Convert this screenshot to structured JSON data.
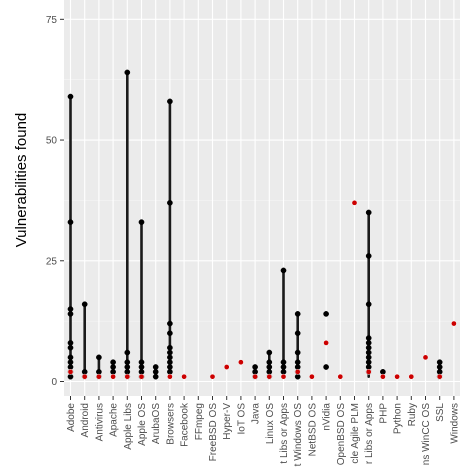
{
  "chart_data": {
    "type": "scatter",
    "title": "",
    "xlabel": "",
    "ylabel": "Vulnerabilities found",
    "ylim": [
      -3,
      79
    ],
    "yticks": [
      0,
      25,
      50,
      75
    ],
    "grid": true,
    "legend": "none",
    "categories": [
      "Adobe",
      "Android",
      "Antivirus",
      "Apache",
      "Apple Libs",
      "Apple OS",
      "ArubaOS",
      "Browsers",
      "Facebook",
      "FFmpeg",
      "FreeBSD OS",
      "Hyper-V",
      "IoT OS",
      "Java",
      "Linux OS",
      "Microsoft Libs or Apps",
      "Microsoft Windows OS",
      "NetBSD OS",
      "nVidia",
      "OpenBSD OS",
      "Oracle Agile PLM",
      "Other Libs or Apps",
      "PHP",
      "Python",
      "Ruby",
      "Siemens WinCC OS",
      "SSL",
      "Windows"
    ],
    "tick_labels": [
      "Adobe",
      "Android",
      "Antivirus",
      "Apache",
      "Apple Libs",
      "Apple OS",
      "ArubaOS",
      "Browsers",
      "Facebook",
      "FFmpeg",
      "FreeBSD OS",
      "Hyper-V",
      "IoT OS",
      "Java",
      "Linux OS",
      "t Libs or Apps",
      "t Windows OS",
      "NetBSD OS",
      "nVidia",
      "OpenBSD OS",
      "cle Agile PLM",
      "r Libs or Apps",
      "PHP",
      "Python",
      "Ruby",
      "ns WinCC OS",
      "SSL",
      "Windows"
    ],
    "ranges": [
      {
        "category": "Adobe",
        "min": 1,
        "max": 59
      },
      {
        "category": "Android",
        "min": 1,
        "max": 16
      },
      {
        "category": "Antivirus",
        "min": 1,
        "max": 5
      },
      {
        "category": "Apache",
        "min": 1,
        "max": 4
      },
      {
        "category": "Apple Libs",
        "min": 1,
        "max": 64
      },
      {
        "category": "Apple OS",
        "min": 1,
        "max": 33
      },
      {
        "category": "ArubaOS",
        "min": 1,
        "max": 3
      },
      {
        "category": "Browsers",
        "min": 1,
        "max": 58
      },
      {
        "category": "Java",
        "min": 1,
        "max": 3
      },
      {
        "category": "Linux OS",
        "min": 1,
        "max": 6
      },
      {
        "category": "Microsoft Libs or Apps",
        "min": 1,
        "max": 23
      },
      {
        "category": "Microsoft Windows OS",
        "min": 1,
        "max": 14
      },
      {
        "category": "Other Libs or Apps",
        "min": 1,
        "max": 35
      },
      {
        "category": "SSL",
        "min": 1,
        "max": 4
      }
    ],
    "series": [
      {
        "name": "",
        "color": "#000000",
        "points": [
          {
            "category": "Adobe",
            "values": [
              59,
              33,
              15,
              14,
              8,
              7,
              5,
              4,
              3,
              2,
              1
            ]
          },
          {
            "category": "Android",
            "values": [
              16,
              2,
              1
            ]
          },
          {
            "category": "Antivirus",
            "values": [
              5,
              2,
              1
            ]
          },
          {
            "category": "Apache",
            "values": [
              4,
              3,
              2
            ]
          },
          {
            "category": "Apple Libs",
            "values": [
              64,
              6,
              4,
              3,
              2,
              1
            ]
          },
          {
            "category": "Apple OS",
            "values": [
              33,
              4,
              3,
              2,
              1
            ]
          },
          {
            "category": "ArubaOS",
            "values": [
              3,
              2,
              1
            ]
          },
          {
            "category": "Browsers",
            "values": [
              58,
              37,
              12,
              10,
              7,
              6,
              5,
              4,
              3,
              2
            ]
          },
          {
            "category": "Java",
            "values": [
              3,
              2,
              1
            ]
          },
          {
            "category": "Linux OS",
            "values": [
              6,
              4,
              3,
              2,
              1
            ]
          },
          {
            "category": "Microsoft Libs or Apps",
            "values": [
              23,
              4,
              3,
              2
            ]
          },
          {
            "category": "Microsoft Windows OS",
            "values": [
              14,
              10,
              6,
              4,
              3,
              2,
              1
            ]
          },
          {
            "category": "nVidia",
            "values": [
              14,
              3
            ]
          },
          {
            "category": "Other Libs or Apps",
            "values": [
              35,
              26,
              16,
              9,
              8,
              7,
              6,
              5,
              4,
              3,
              2
            ]
          },
          {
            "category": "PHP",
            "values": [
              2
            ]
          },
          {
            "category": "SSL",
            "values": [
              4,
              3,
              2,
              1
            ]
          }
        ]
      },
      {
        "name": "",
        "color": "#cc0000",
        "points": [
          {
            "category": "Adobe",
            "values": [
              2
            ]
          },
          {
            "category": "Android",
            "values": [
              1
            ]
          },
          {
            "category": "Antivirus",
            "values": [
              1
            ]
          },
          {
            "category": "Apache",
            "values": [
              1
            ]
          },
          {
            "category": "Apple Libs",
            "values": [
              1
            ]
          },
          {
            "category": "Apple OS",
            "values": [
              1
            ]
          },
          {
            "category": "Browsers",
            "values": [
              1
            ]
          },
          {
            "category": "Facebook",
            "values": [
              1
            ]
          },
          {
            "category": "FreeBSD OS",
            "values": [
              1
            ]
          },
          {
            "category": "Hyper-V",
            "values": [
              3
            ]
          },
          {
            "category": "IoT OS",
            "values": [
              4
            ]
          },
          {
            "category": "Java",
            "values": [
              1
            ]
          },
          {
            "category": "Linux OS",
            "values": [
              1
            ]
          },
          {
            "category": "Microsoft Libs or Apps",
            "values": [
              1
            ]
          },
          {
            "category": "Microsoft Windows OS",
            "values": [
              2
            ]
          },
          {
            "category": "NetBSD OS",
            "values": [
              1
            ]
          },
          {
            "category": "nVidia",
            "values": [
              8
            ]
          },
          {
            "category": "OpenBSD OS",
            "values": [
              1
            ]
          },
          {
            "category": "Oracle Agile PLM",
            "values": [
              37
            ]
          },
          {
            "category": "Other Libs or Apps",
            "values": [
              2
            ]
          },
          {
            "category": "PHP",
            "values": [
              1
            ]
          },
          {
            "category": "Python",
            "values": [
              1
            ]
          },
          {
            "category": "Ruby",
            "values": [
              1
            ]
          },
          {
            "category": "Siemens WinCC OS",
            "values": [
              5
            ]
          },
          {
            "category": "SSL",
            "values": [
              1
            ]
          },
          {
            "category": "Windows",
            "values": [
              12
            ]
          }
        ]
      }
    ]
  }
}
